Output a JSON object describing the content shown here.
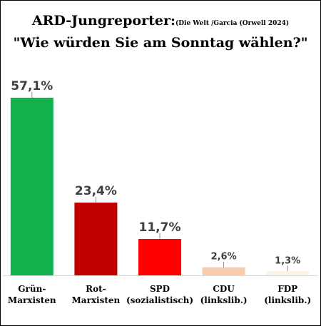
{
  "chart_data": {
    "type": "bar",
    "title": "ARD-Jungreporter:",
    "source_note": "(Die Welt /Garcia (Orwell 2024)",
    "subtitle": "\"Wie würden Sie am Sonntag wählen?\"",
    "categories": [
      [
        "Grün-",
        "Marxisten"
      ],
      [
        "Rot-",
        "Marxisten"
      ],
      [
        "SPD",
        "(sozialistisch)"
      ],
      [
        "CDU",
        "(linkslib.)"
      ],
      [
        "FDP",
        "(linkslib.)"
      ]
    ],
    "values": [
      57.1,
      23.4,
      11.7,
      2.6,
      1.3
    ],
    "value_labels": [
      "57,1%",
      "23,4%",
      "11,7%",
      "2,6%",
      "1,3%"
    ],
    "colors": [
      "#13b14d",
      "#c00000",
      "#ff0000",
      "#f8cbad",
      "#fdf2e3"
    ],
    "ylim": [
      0,
      57.1
    ],
    "grid": false,
    "xlabel": "",
    "ylabel": ""
  }
}
